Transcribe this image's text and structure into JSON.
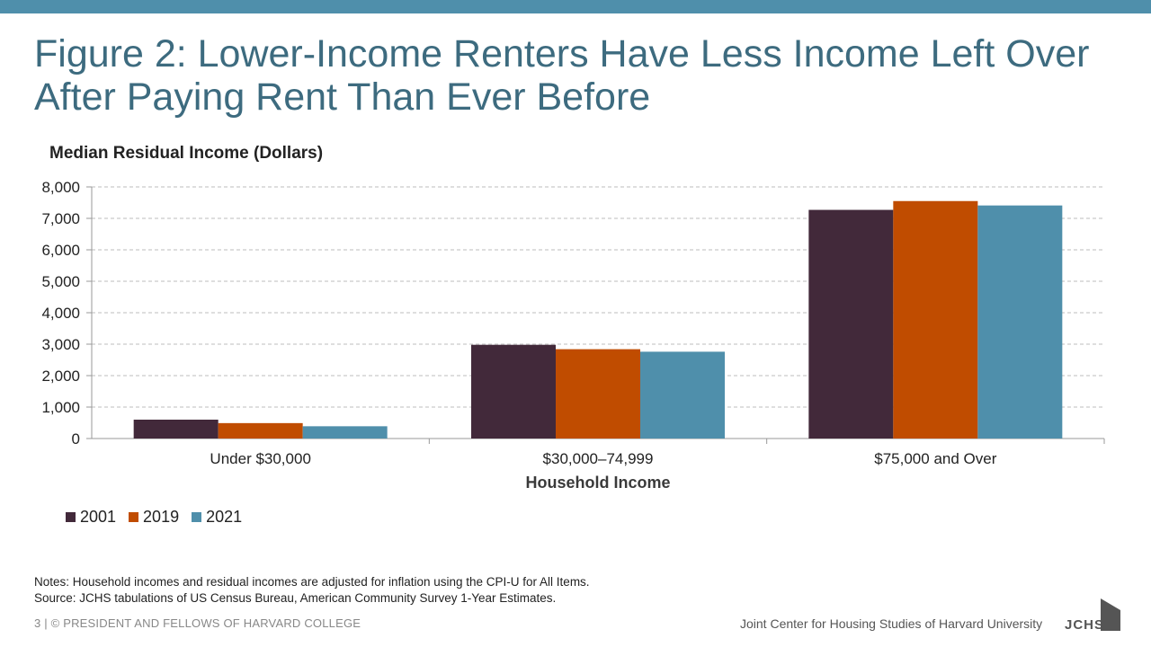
{
  "header": {
    "title_line1": "Figure 2: Lower-Income Renters Have Less Income Left Over",
    "title_line2": "After Paying Rent Than Ever Before"
  },
  "chart_data": {
    "type": "bar",
    "ylabel": "Median Residual Income (Dollars)",
    "xlabel": "Household Income",
    "categories": [
      "Under $30,000",
      "$30,000–74,999",
      "$75,000 and Over"
    ],
    "series": [
      {
        "name": "2001",
        "color": "#42293a",
        "values": [
          600,
          2980,
          7270
        ]
      },
      {
        "name": "2019",
        "color": "#c04c00",
        "values": [
          490,
          2840,
          7550
        ]
      },
      {
        "name": "2021",
        "color": "#4f8fab",
        "values": [
          390,
          2760,
          7410
        ]
      }
    ],
    "yticks": [
      "0",
      "1,000",
      "2,000",
      "3,000",
      "4,000",
      "5,000",
      "6,000",
      "7,000",
      "8,000"
    ],
    "ylim": [
      0,
      8000
    ],
    "grid": true,
    "legend_position": "bottom-left"
  },
  "notes": {
    "line1": "Notes: Household incomes and residual incomes are adjusted for inflation using the CPI-U for All Items.",
    "line2": "Source: JCHS tabulations of US Census Bureau, American Community Survey 1-Year Estimates."
  },
  "footer": {
    "left": "3 | © PRESIDENT AND FELLOWS OF HARVARD COLLEGE",
    "right": "Joint Center for Housing Studies of Harvard University",
    "logo_text": "JCHS"
  }
}
